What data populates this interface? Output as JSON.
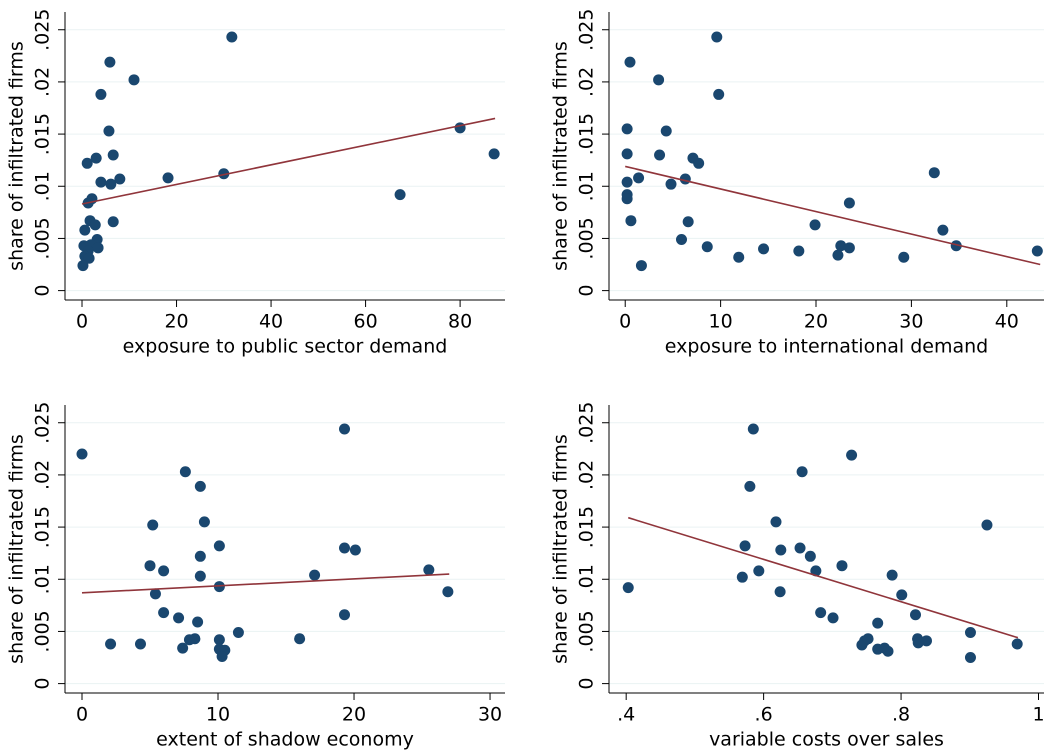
{
  "chart_data": [
    {
      "type": "scatter",
      "xlabel": "exposure to public sector demand",
      "ylabel": "share of infiltrated firms",
      "color": "#1a476f",
      "grid": true,
      "x": [
        31.7,
        5.9,
        11,
        4.0,
        5.7,
        6.6,
        3.0,
        1.1,
        18.2,
        8.0,
        30,
        80,
        87.2,
        67.3,
        4.0,
        6.1,
        2.1,
        1.3,
        6.6,
        1.7,
        2.8,
        0.6,
        3.2,
        0.4,
        1.9,
        3.4,
        1.3,
        0.6,
        1.5,
        0.2
      ],
      "y": [
        0.0243,
        0.0219,
        0.0202,
        0.0188,
        0.0153,
        0.013,
        0.0127,
        0.0122,
        0.0108,
        0.0107,
        0.0112,
        0.0156,
        0.0131,
        0.0092,
        0.0104,
        0.0102,
        0.0088,
        0.0084,
        0.0066,
        0.0067,
        0.0063,
        0.0058,
        0.0049,
        0.0043,
        0.0044,
        0.0041,
        0.0038,
        0.0033,
        0.0031,
        0.0024
      ],
      "fit": {
        "x": [
          0,
          87.4
        ],
        "y": [
          0.0083,
          0.0165
        ],
        "color": "#90353b"
      },
      "xlim": [
        -3.6,
        89.5
      ],
      "ylim": [
        -0.0009,
        0.0267
      ],
      "xticks": [
        0,
        20,
        40,
        60,
        80
      ],
      "yticks": [
        0,
        {
          "value": 0.005,
          "label": ".005"
        },
        {
          "value": 0.01,
          "label": ".01"
        },
        {
          "value": 0.015,
          "label": ".015"
        },
        {
          "value": 0.02,
          "label": ".02"
        },
        {
          "value": 0.025,
          "label": ".025"
        }
      ]
    },
    {
      "type": "scatter",
      "xlabel": "exposure to international demand",
      "ylabel": "share of infiltrated firms",
      "color": "#1a476f",
      "grid": true,
      "x": [
        9.6,
        0.5,
        3.5,
        9.8,
        0.2,
        4.3,
        0.2,
        3.6,
        7.1,
        7.7,
        1.4,
        6.3,
        0.2,
        4.8,
        32.4,
        0.2,
        0.2,
        23.5,
        0.6,
        6.6,
        19.9,
        33.3,
        5.9,
        8.6,
        34.7,
        22.6,
        23.5,
        14.5,
        18.2,
        43.2,
        11.9,
        22.3,
        29.2,
        1.7
      ],
      "y": [
        0.0243,
        0.0219,
        0.0202,
        0.0188,
        0.0155,
        0.0153,
        0.0131,
        0.013,
        0.0127,
        0.0122,
        0.0108,
        0.0107,
        0.0104,
        0.0102,
        0.0113,
        0.0092,
        0.0088,
        0.0084,
        0.0067,
        0.0066,
        0.0063,
        0.0058,
        0.0049,
        0.0042,
        0.0043,
        0.0043,
        0.0041,
        0.004,
        0.0038,
        0.0038,
        0.0032,
        0.0034,
        0.0032,
        0.0024
      ],
      "fit": {
        "x": [
          0,
          43.5
        ],
        "y": [
          0.0119,
          0.0025
        ],
        "color": "#90353b"
      },
      "xlim": [
        -1.7,
        43.9
      ],
      "ylim": [
        -0.0009,
        0.0267
      ],
      "xticks": [
        0,
        10,
        20,
        30,
        40
      ],
      "yticks": [
        0,
        {
          "value": 0.005,
          "label": ".005"
        },
        {
          "value": 0.01,
          "label": ".01"
        },
        {
          "value": 0.015,
          "label": ".015"
        },
        {
          "value": 0.02,
          "label": ".02"
        },
        {
          "value": 0.025,
          "label": ".025"
        }
      ]
    },
    {
      "type": "scatter",
      "xlabel": "extent of shadow economy",
      "ylabel": "share of infiltrated firms",
      "color": "#1a476f",
      "grid": true,
      "x": [
        0,
        19.3,
        7.6,
        8.7,
        9.0,
        5.2,
        10.1,
        19.3,
        20.1,
        8.7,
        5.0,
        6.0,
        25.5,
        17.1,
        8.7,
        10.1,
        26.9,
        5.4,
        6.0,
        19.3,
        7.1,
        8.5,
        11.5,
        16.0,
        8.3,
        7.9,
        10.1,
        2.1,
        4.3,
        7.4,
        10.1,
        10.5,
        10.3
      ],
      "y": [
        0.022,
        0.0244,
        0.0203,
        0.0189,
        0.0155,
        0.0152,
        0.0132,
        0.013,
        0.0128,
        0.0122,
        0.0113,
        0.0108,
        0.0109,
        0.0104,
        0.0103,
        0.0093,
        0.0088,
        0.0086,
        0.0068,
        0.0066,
        0.0063,
        0.0059,
        0.0049,
        0.0043,
        0.0043,
        0.0042,
        0.0042,
        0.0038,
        0.0038,
        0.0034,
        0.0033,
        0.0032,
        0.0026
      ],
      "fit": {
        "x": [
          0,
          27
        ],
        "y": [
          0.0087,
          0.0105
        ],
        "color": "#90353b"
      },
      "xlim": [
        -1.25,
        31.1
      ],
      "ylim": [
        -0.0009,
        0.0267
      ],
      "xticks": [
        0,
        10,
        20,
        30
      ],
      "yticks": [
        0,
        {
          "value": 0.005,
          "label": ".005"
        },
        {
          "value": 0.01,
          "label": ".01"
        },
        {
          "value": 0.015,
          "label": ".015"
        },
        {
          "value": 0.02,
          "label": ".02"
        },
        {
          "value": 0.025,
          "label": ".025"
        }
      ]
    },
    {
      "type": "scatter",
      "xlabel": "variable costs over sales",
      "ylabel": "share of infiltrated firms",
      "color": "#1a476f",
      "grid": true,
      "x": [
        0.585,
        0.403,
        0.58,
        0.728,
        0.656,
        0.618,
        0.573,
        0.625,
        0.653,
        0.668,
        0.714,
        0.593,
        0.676,
        0.569,
        0.787,
        0.925,
        0.624,
        0.801,
        0.683,
        0.701,
        0.821,
        0.766,
        0.901,
        0.743,
        0.747,
        0.752,
        0.824,
        0.837,
        0.825,
        0.766,
        0.776,
        0.781,
        0.969,
        0.901
      ],
      "y": [
        0.0244,
        0.0092,
        0.0189,
        0.0219,
        0.0203,
        0.0155,
        0.0132,
        0.0128,
        0.013,
        0.0122,
        0.0113,
        0.0108,
        0.0108,
        0.0102,
        0.0104,
        0.0152,
        0.0088,
        0.0085,
        0.0068,
        0.0063,
        0.0066,
        0.0058,
        0.0049,
        0.0037,
        0.0041,
        0.0043,
        0.0043,
        0.0041,
        0.0039,
        0.0033,
        0.0034,
        0.0031,
        0.0038,
        0.0025
      ],
      "fit": {
        "x": [
          0.403,
          0.97
        ],
        "y": [
          0.0159,
          0.0044
        ],
        "color": "#90353b"
      },
      "xlim": [
        0.375,
        1.008
      ],
      "ylim": [
        -0.0009,
        0.0267
      ],
      "xticks": [
        {
          "value": 0.4,
          "label": ".4"
        },
        {
          "value": 0.6,
          "label": ".6"
        },
        {
          "value": 0.8,
          "label": ".8"
        },
        1
      ],
      "yticks": [
        0,
        {
          "value": 0.005,
          "label": ".005"
        },
        {
          "value": 0.01,
          "label": ".01"
        },
        {
          "value": 0.015,
          "label": ".015"
        },
        {
          "value": 0.02,
          "label": ".02"
        },
        {
          "value": 0.025,
          "label": ".025"
        }
      ]
    }
  ]
}
